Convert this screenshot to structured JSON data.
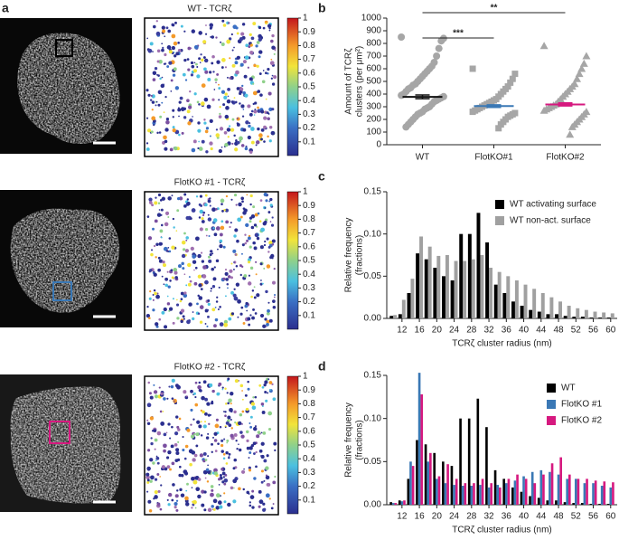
{
  "panel_labels": [
    "a",
    "b",
    "c",
    "d"
  ],
  "images": [
    {
      "title": "WT - TCRζ"
    },
    {
      "title": "FlotKO #1 - TCRζ"
    },
    {
      "title": "FlotKO #2 - TCRζ"
    }
  ],
  "colorbar": {
    "ylim": [
      0,
      1
    ],
    "yticks": [
      0.1,
      0.2,
      0.3,
      0.4,
      0.5,
      0.6,
      0.7,
      0.8,
      0.9,
      1
    ]
  },
  "chart_data": [
    {
      "type": "dotplot",
      "ylabel": [
        "Amount of TCRζ",
        "clusters (per μm²)"
      ],
      "categories": [
        "WT",
        "FlotKO#1",
        "FlotKO#2"
      ],
      "ylim": [
        0,
        1000
      ],
      "yticks": [
        0,
        100,
        200,
        300,
        400,
        500,
        600,
        700,
        800,
        900,
        1000
      ],
      "annotations": [
        "***",
        "**"
      ],
      "point_color": "#a6a6a6",
      "groups": [
        {
          "marker": "circle",
          "color": "#111111",
          "mean": 378,
          "error": 15,
          "values": [
            850,
            840,
            820,
            760,
            700,
            650,
            620,
            600,
            580,
            560,
            540,
            520,
            500,
            480,
            470,
            450,
            440,
            420,
            400,
            390,
            380,
            370,
            360,
            350,
            340,
            320,
            300,
            290,
            280,
            260,
            250,
            240,
            220,
            200,
            180,
            160,
            140
          ]
        },
        {
          "marker": "square",
          "color": "#3a78b5",
          "mean": 305,
          "error": 10,
          "values": [
            600,
            560,
            520,
            490,
            460,
            440,
            420,
            400,
            380,
            360,
            350,
            340,
            330,
            320,
            310,
            300,
            290,
            280,
            270,
            260,
            250,
            240,
            230,
            220,
            200,
            180,
            160,
            130
          ]
        },
        {
          "marker": "triangle",
          "color": "#d6197f",
          "mean": 318,
          "error": 12,
          "values": [
            780,
            700,
            640,
            600,
            560,
            520,
            480,
            460,
            440,
            420,
            400,
            380,
            360,
            340,
            320,
            310,
            300,
            290,
            280,
            270,
            260,
            240,
            220,
            200,
            180,
            160,
            140,
            80
          ]
        }
      ]
    },
    {
      "type": "bar",
      "xlabel": "TCRζ cluster radius (nm)",
      "ylabel": [
        "Relative frequency",
        "(fractions)"
      ],
      "x": [
        10,
        12,
        14,
        16,
        18,
        20,
        22,
        24,
        26,
        28,
        30,
        32,
        34,
        36,
        38,
        40,
        42,
        44,
        46,
        48,
        50,
        52,
        54,
        56,
        58,
        60
      ],
      "xlim": [
        8.5,
        61.5
      ],
      "xticks": [
        12,
        16,
        20,
        24,
        28,
        32,
        36,
        40,
        44,
        48,
        52,
        56,
        60
      ],
      "ylim": [
        0,
        0.15
      ],
      "yticks": [
        {
          "value": 0,
          "label": "0.00"
        },
        0.05,
        {
          "value": 0.1,
          "label": "0.10"
        },
        0.15
      ],
      "legend": "top-right",
      "series": [
        {
          "name": "WT activating surface",
          "color": "#000000",
          "values": [
            0.003,
            0.005,
            0.03,
            0.077,
            0.07,
            0.06,
            0.05,
            0.045,
            0.1,
            0.1,
            0.125,
            0.09,
            0.04,
            0.03,
            0.02,
            0.015,
            0.01,
            0.008,
            0.005,
            0.005,
            0.003,
            0.002,
            0.002,
            0.001,
            0.001,
            0.001
          ]
        },
        {
          "name": "WT non-act. surface",
          "color": "#a0a0a0",
          "values": [
            0.004,
            0.022,
            0.047,
            0.097,
            0.085,
            0.074,
            0.075,
            0.068,
            0.068,
            0.07,
            0.075,
            0.06,
            0.055,
            0.05,
            0.045,
            0.04,
            0.035,
            0.03,
            0.025,
            0.02,
            0.015,
            0.012,
            0.01,
            0.008,
            0.007,
            0.006
          ]
        }
      ]
    },
    {
      "type": "bar",
      "xlabel": "TCRζ cluster radius (nm)",
      "ylabel": [
        "Relative frequency",
        "(fractions)"
      ],
      "x": [
        10,
        12,
        14,
        16,
        18,
        20,
        22,
        24,
        26,
        28,
        30,
        32,
        34,
        36,
        38,
        40,
        42,
        44,
        46,
        48,
        50,
        52,
        54,
        56,
        58,
        60
      ],
      "xlim": [
        8.5,
        61.5
      ],
      "xticks": [
        12,
        16,
        20,
        24,
        28,
        32,
        36,
        40,
        44,
        48,
        52,
        56,
        60
      ],
      "ylim": [
        0,
        0.15
      ],
      "yticks": [
        {
          "value": 0,
          "label": "0.00"
        },
        0.05,
        {
          "value": 0.1,
          "label": "0.10"
        },
        0.15
      ],
      "legend": "top-right",
      "series": [
        {
          "name": "WT",
          "color": "#000000",
          "values": [
            0.003,
            0.005,
            0.03,
            0.075,
            0.07,
            0.06,
            0.05,
            0.045,
            0.1,
            0.1,
            0.123,
            0.09,
            0.04,
            0.03,
            0.02,
            0.015,
            0.01,
            0.008,
            0.005,
            0.005,
            0.003,
            0.002,
            0.002,
            0.001,
            0.001,
            0.001
          ]
        },
        {
          "name": "FlotKO #1",
          "color": "#3a78b5",
          "values": [
            0.002,
            0.004,
            0.05,
            0.153,
            0.05,
            0.03,
            0.025,
            0.023,
            0.022,
            0.022,
            0.023,
            0.02,
            0.023,
            0.025,
            0.028,
            0.033,
            0.038,
            0.04,
            0.038,
            0.035,
            0.03,
            0.03,
            0.025,
            0.025,
            0.022,
            0.02
          ]
        },
        {
          "name": "FlotKO #2",
          "color": "#d6197f",
          "values": [
            0.002,
            0.005,
            0.045,
            0.128,
            0.06,
            0.033,
            0.047,
            0.03,
            0.025,
            0.025,
            0.03,
            0.025,
            0.02,
            0.03,
            0.035,
            0.03,
            0.025,
            0.035,
            0.048,
            0.055,
            0.035,
            0.03,
            0.03,
            0.028,
            0.027,
            0.026
          ]
        }
      ]
    }
  ]
}
